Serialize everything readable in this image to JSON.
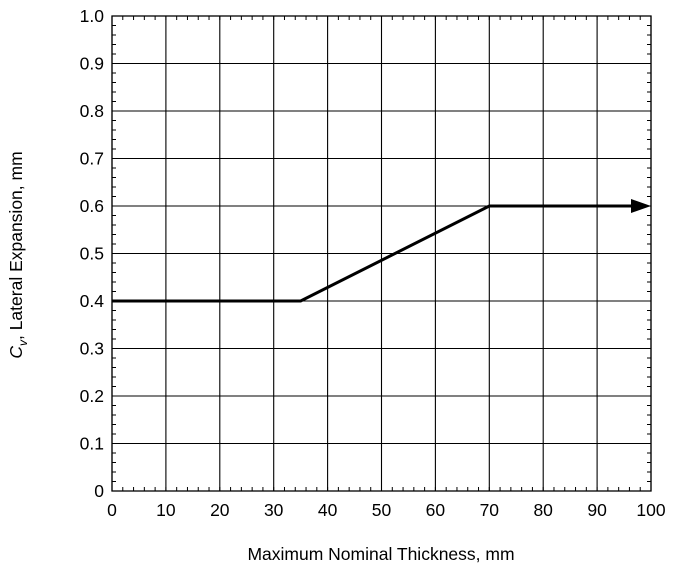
{
  "chart_data": {
    "type": "line",
    "xlabel": "Maximum Nominal Thickness, mm",
    "ylabel_prefix": "C",
    "ylabel_subscript": "v",
    "ylabel_rest": ", Lateral Expansion, mm",
    "xlim": [
      0,
      100
    ],
    "ylim": [
      0,
      1.0
    ],
    "x_ticks": [
      0,
      10,
      20,
      30,
      40,
      50,
      60,
      70,
      80,
      90,
      100
    ],
    "y_ticks": [
      0,
      0.1,
      0.2,
      0.3,
      0.4,
      0.5,
      0.6,
      0.7,
      0.8,
      0.9,
      1.0
    ],
    "x_tick_labels": [
      "0",
      "10",
      "20",
      "30",
      "40",
      "50",
      "60",
      "70",
      "80",
      "90",
      "100"
    ],
    "y_tick_labels": [
      "0",
      "0.1",
      "0.2",
      "0.3",
      "0.4",
      "0.5",
      "0.6",
      "0.7",
      "0.8",
      "0.9",
      "1.0"
    ],
    "grid": true,
    "series": [
      {
        "x": [
          0,
          35,
          70,
          100
        ],
        "y": [
          0.4,
          0.4,
          0.6,
          0.6
        ],
        "end_arrow": true,
        "color": "#000000"
      }
    ]
  }
}
